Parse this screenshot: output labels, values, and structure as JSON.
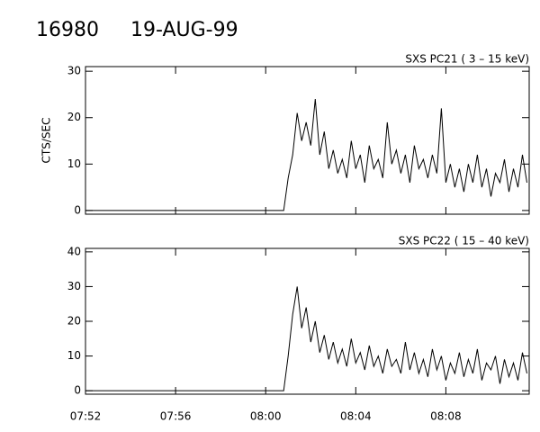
{
  "header": {
    "id": "16980",
    "date": "19-AUG-99"
  },
  "chart_data": [
    {
      "type": "line",
      "title": "SXS PC21  (  3 – 15 keV)",
      "y_label": "CTS/SEC",
      "color": "#000000",
      "xlim": [
        472,
        491.7
      ],
      "ylim": [
        -0.8,
        31
      ],
      "xticks": [
        472,
        476,
        480,
        484,
        488
      ],
      "yticks": [
        0,
        10,
        20,
        30
      ],
      "x": [
        472,
        480.8,
        481.0,
        481.2,
        481.4,
        481.6,
        481.8,
        482.0,
        482.2,
        482.4,
        482.6,
        482.8,
        483.0,
        483.2,
        483.4,
        483.6,
        483.8,
        484.0,
        484.2,
        484.4,
        484.6,
        484.8,
        485.0,
        485.2,
        485.4,
        485.6,
        485.8,
        486.0,
        486.2,
        486.4,
        486.6,
        486.8,
        487.0,
        487.2,
        487.4,
        487.6,
        487.8,
        488.0,
        488.2,
        488.4,
        488.6,
        488.8,
        489.0,
        489.2,
        489.4,
        489.6,
        489.8,
        490.0,
        490.2,
        490.4,
        490.6,
        490.8,
        491.0,
        491.2,
        491.4,
        491.6
      ],
      "values": [
        0,
        0,
        7,
        12,
        21,
        15,
        19,
        14,
        24,
        12,
        17,
        9,
        13,
        8,
        11,
        7,
        15,
        9,
        12,
        6,
        14,
        9,
        11,
        7,
        19,
        10,
        13,
        8,
        12,
        6,
        14,
        9,
        11,
        7,
        12,
        8,
        22,
        6,
        10,
        5,
        9,
        4,
        10,
        6,
        12,
        5,
        9,
        3,
        8,
        6,
        11,
        4,
        9,
        5,
        12,
        6
      ]
    },
    {
      "type": "line",
      "title": "SXS PC22  ( 15 – 40 keV)",
      "color": "#000000",
      "xlim": [
        472,
        491.7
      ],
      "ylim": [
        -1,
        41
      ],
      "xticks": [
        {
          "value": 472,
          "label": "07:52"
        },
        {
          "value": 476,
          "label": "07:56"
        },
        {
          "value": 480,
          "label": "08:00"
        },
        {
          "value": 484,
          "label": "08:04"
        },
        {
          "value": 488,
          "label": "08:08"
        }
      ],
      "yticks": [
        0,
        10,
        20,
        30,
        40
      ],
      "x": [
        472,
        480.8,
        481.0,
        481.2,
        481.4,
        481.6,
        481.8,
        482.0,
        482.2,
        482.4,
        482.6,
        482.8,
        483.0,
        483.2,
        483.4,
        483.6,
        483.8,
        484.0,
        484.2,
        484.4,
        484.6,
        484.8,
        485.0,
        485.2,
        485.4,
        485.6,
        485.8,
        486.0,
        486.2,
        486.4,
        486.6,
        486.8,
        487.0,
        487.2,
        487.4,
        487.6,
        487.8,
        488.0,
        488.2,
        488.4,
        488.6,
        488.8,
        489.0,
        489.2,
        489.4,
        489.6,
        489.8,
        490.0,
        490.2,
        490.4,
        490.6,
        490.8,
        491.0,
        491.2,
        491.4,
        491.6
      ],
      "values": [
        0,
        0,
        10,
        22,
        30,
        18,
        24,
        14,
        20,
        11,
        16,
        9,
        14,
        8,
        12,
        7,
        15,
        8,
        11,
        6,
        13,
        7,
        10,
        5,
        12,
        7,
        9,
        5,
        14,
        6,
        11,
        5,
        9,
        4,
        12,
        6,
        10,
        3,
        8,
        5,
        11,
        4,
        9,
        5,
        12,
        3,
        8,
        6,
        10,
        2,
        9,
        4,
        8,
        3,
        11,
        5
      ]
    }
  ]
}
